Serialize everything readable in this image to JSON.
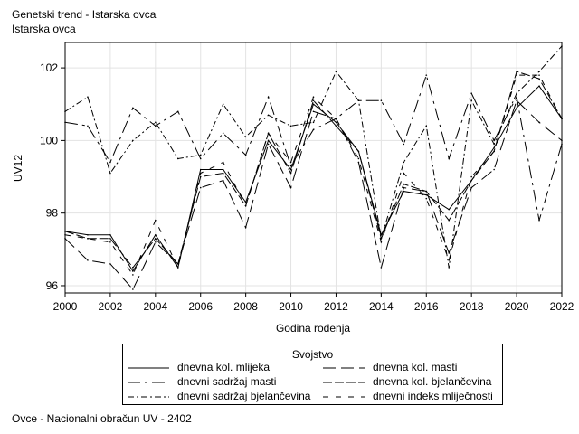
{
  "header": {
    "title": "Genetski trend - Istarska ovca",
    "subtitle": "Istarska ovca"
  },
  "footer": "Ovce - Nacionalni obračun UV - 2402",
  "chart_data": {
    "type": "line",
    "xlabel": "Godina rođenja",
    "ylabel": "UV12",
    "xlim": [
      2000,
      2022
    ],
    "ylim": [
      95.8,
      102.7
    ],
    "xticks": [
      2000,
      2002,
      2004,
      2006,
      2008,
      2010,
      2012,
      2014,
      2016,
      2018,
      2020,
      2022
    ],
    "yticks": [
      96,
      98,
      100,
      102
    ],
    "grid": true,
    "legend_title": "Svojstvo",
    "legend_position": "bottom",
    "x": [
      2000,
      2001,
      2002,
      2003,
      2004,
      2005,
      2006,
      2007,
      2008,
      2009,
      2010,
      2011,
      2012,
      2013,
      2014,
      2015,
      2016,
      2017,
      2018,
      2019,
      2020,
      2021,
      2022
    ],
    "series": [
      {
        "name": "dnevna kol. mlijeka",
        "dash": "solid",
        "values": [
          97.5,
          97.4,
          97.4,
          96.4,
          97.4,
          96.5,
          99.2,
          99.2,
          98.3,
          100.0,
          99.2,
          101.0,
          100.5,
          99.7,
          97.4,
          98.6,
          98.5,
          98.1,
          98.9,
          99.8,
          100.9,
          101.5,
          100.6
        ]
      },
      {
        "name": "dnevna kol. masti",
        "dash": "14,6",
        "values": [
          97.3,
          96.7,
          96.6,
          95.9,
          97.2,
          96.6,
          98.7,
          98.9,
          97.6,
          99.9,
          98.7,
          100.8,
          100.6,
          99.4,
          96.5,
          98.7,
          98.6,
          96.9,
          98.7,
          99.2,
          101.1,
          100.5,
          100.0
        ]
      },
      {
        "name": "dnevni sadržaj masti",
        "dash": "14,5,3,5",
        "values": [
          100.5,
          100.4,
          99.4,
          100.9,
          100.4,
          100.8,
          99.5,
          100.2,
          99.6,
          101.2,
          99.3,
          100.3,
          100.6,
          101.1,
          101.1,
          99.9,
          101.8,
          99.5,
          101.3,
          100.0,
          101.2,
          97.8,
          99.9
        ]
      },
      {
        "name": "dnevna kol. bjelančevina",
        "dash": "10,3",
        "values": [
          97.5,
          97.3,
          97.3,
          96.5,
          97.3,
          96.6,
          99.0,
          99.1,
          98.2,
          100.2,
          99.1,
          101.1,
          100.4,
          99.7,
          97.3,
          98.8,
          98.6,
          97.8,
          98.9,
          99.7,
          101.9,
          101.7,
          100.6
        ]
      },
      {
        "name": "dnevni sadržaj bjelančevina",
        "dash": "7,3,2,3",
        "values": [
          100.8,
          101.2,
          99.1,
          100.0,
          100.5,
          99.5,
          99.6,
          101.0,
          100.1,
          100.7,
          100.4,
          100.5,
          101.9,
          101.1,
          97.3,
          99.4,
          100.4,
          96.5,
          101.1,
          99.9,
          101.3,
          101.9,
          102.6
        ]
      },
      {
        "name": "dnevni indeks mliječnosti",
        "dash": "6,8",
        "values": [
          97.4,
          97.3,
          97.2,
          96.3,
          97.8,
          96.5,
          99.1,
          99.4,
          98.2,
          100.2,
          99.4,
          101.2,
          100.6,
          99.5,
          97.2,
          99.1,
          98.4,
          96.7,
          99.0,
          99.7,
          101.8,
          101.8,
          100.6
        ]
      }
    ]
  }
}
